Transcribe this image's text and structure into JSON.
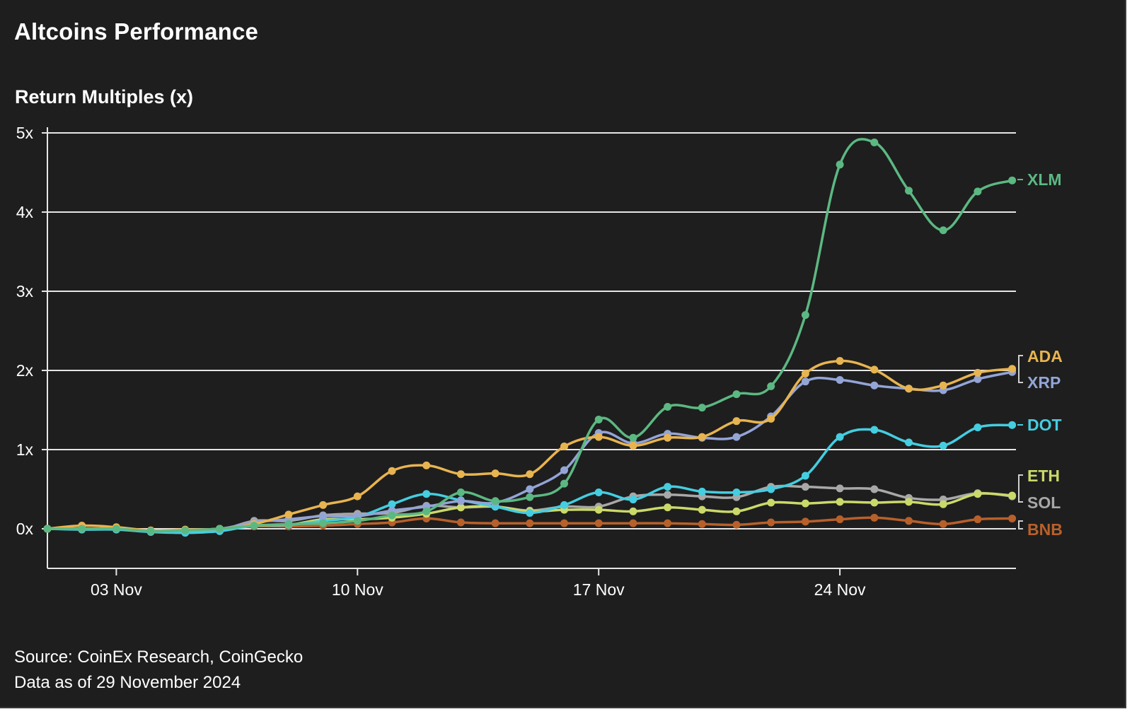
{
  "title": "Altcoins Performance",
  "source_line1": "Source: CoinEx Research, CoinGecko",
  "source_line2": "Data as of 29 November 2024",
  "chart_data": {
    "type": "line",
    "ylabel": "Return Multiples (x)",
    "ylim": [
      -0.5,
      5
    ],
    "yticks": [
      0,
      1,
      2,
      3,
      4,
      5
    ],
    "ytick_labels": [
      "0x",
      "1x",
      "2x",
      "3x",
      "4x",
      "5x"
    ],
    "xlim": [
      1,
      29.8
    ],
    "xticks": [
      3,
      10,
      17,
      24
    ],
    "xtick_labels": [
      "03 Nov",
      "10 Nov",
      "17 Nov",
      "24 Nov"
    ],
    "x_days": [
      1,
      2,
      3,
      4,
      5,
      6,
      7,
      8,
      9,
      10,
      11,
      12,
      13,
      14,
      15,
      16,
      17,
      18,
      19,
      20,
      21,
      22,
      23,
      24,
      25,
      26,
      27,
      28,
      29
    ],
    "grid": "horizontal",
    "legend": "right end labels",
    "series": [
      {
        "name": "BNB",
        "color": "#b8602a",
        "values": [
          0,
          0,
          0,
          -0.03,
          -0.02,
          0,
          0.03,
          0.03,
          0.04,
          0.06,
          0.08,
          0.13,
          0.08,
          0.07,
          0.07,
          0.07,
          0.07,
          0.07,
          0.07,
          0.06,
          0.05,
          0.08,
          0.09,
          0.12,
          0.14,
          0.1,
          0.06,
          0.12,
          0.13
        ]
      },
      {
        "name": "SOL",
        "color": "#a8a8a8",
        "values": [
          0,
          0,
          0,
          -0.03,
          -0.05,
          -0.02,
          0.1,
          0.1,
          0.17,
          0.19,
          0.2,
          0.29,
          0.27,
          0.28,
          0.23,
          0.28,
          0.28,
          0.41,
          0.43,
          0.41,
          0.4,
          0.53,
          0.53,
          0.51,
          0.5,
          0.39,
          0.37,
          0.45,
          0.41
        ]
      },
      {
        "name": "ETH",
        "color": "#cbd96a",
        "values": [
          0,
          0,
          0,
          -0.03,
          -0.04,
          -0.02,
          0.04,
          0.05,
          0.12,
          0.12,
          0.14,
          0.19,
          0.27,
          0.28,
          0.22,
          0.24,
          0.24,
          0.22,
          0.27,
          0.24,
          0.22,
          0.33,
          0.32,
          0.34,
          0.33,
          0.34,
          0.31,
          0.44,
          0.42
        ]
      },
      {
        "name": "DOT",
        "color": "#45cde0",
        "values": [
          0,
          -0.01,
          -0.01,
          -0.04,
          -0.05,
          -0.03,
          0.04,
          0.05,
          0.1,
          0.15,
          0.31,
          0.44,
          0.36,
          0.28,
          0.2,
          0.3,
          0.46,
          0.37,
          0.53,
          0.47,
          0.46,
          0.5,
          0.67,
          1.16,
          1.25,
          1.09,
          1.05,
          1.28,
          1.31
        ]
      },
      {
        "name": "XRP",
        "color": "#93a4d6",
        "values": [
          0,
          0,
          0,
          -0.03,
          -0.02,
          0,
          0.08,
          0.12,
          0.16,
          0.16,
          0.23,
          0.28,
          0.35,
          0.33,
          0.5,
          0.74,
          1.21,
          1.08,
          1.2,
          1.15,
          1.16,
          1.42,
          1.86,
          1.88,
          1.81,
          1.77,
          1.75,
          1.89,
          1.98
        ]
      },
      {
        "name": "ADA",
        "color": "#e8b450",
        "values": [
          0,
          0.04,
          0.02,
          -0.02,
          -0.01,
          0,
          0.06,
          0.18,
          0.3,
          0.41,
          0.73,
          0.8,
          0.69,
          0.7,
          0.69,
          1.04,
          1.16,
          1.05,
          1.15,
          1.16,
          1.36,
          1.39,
          1.96,
          2.12,
          2.01,
          1.77,
          1.81,
          1.97,
          2.02
        ]
      },
      {
        "name": "XLM",
        "color": "#5cb882",
        "values": [
          0,
          0,
          0,
          -0.03,
          -0.02,
          0,
          0.04,
          0.06,
          0.07,
          0.1,
          0.17,
          0.22,
          0.46,
          0.35,
          0.4,
          0.57,
          1.38,
          1.15,
          1.54,
          1.53,
          1.7,
          1.8,
          2.7,
          4.6,
          4.88,
          4.27,
          3.77,
          4.26,
          4.4
        ]
      }
    ]
  }
}
